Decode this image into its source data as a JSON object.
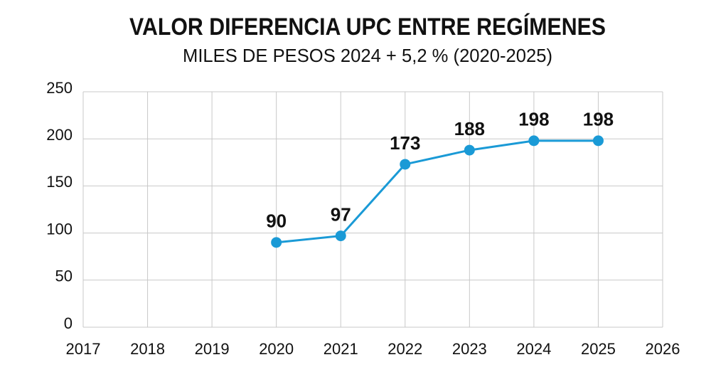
{
  "chart_data": {
    "type": "line",
    "title": "VALOR DIFERENCIA UPC ENTRE REGÍMENES",
    "subtitle": "MILES DE PESOS 2024 + 5,2 % (2020-2025)",
    "x": [
      2020,
      2021,
      2022,
      2023,
      2024,
      2025
    ],
    "values": [
      90,
      97,
      173,
      188,
      198,
      198
    ],
    "color": "#1a9ad6",
    "xlim": [
      2017,
      2026
    ],
    "xticks": [
      2017,
      2018,
      2019,
      2020,
      2021,
      2022,
      2023,
      2024,
      2025,
      2026
    ],
    "ylim": [
      0,
      250
    ],
    "yticks": [
      0,
      50,
      100,
      150,
      200,
      250
    ],
    "grid": true
  }
}
